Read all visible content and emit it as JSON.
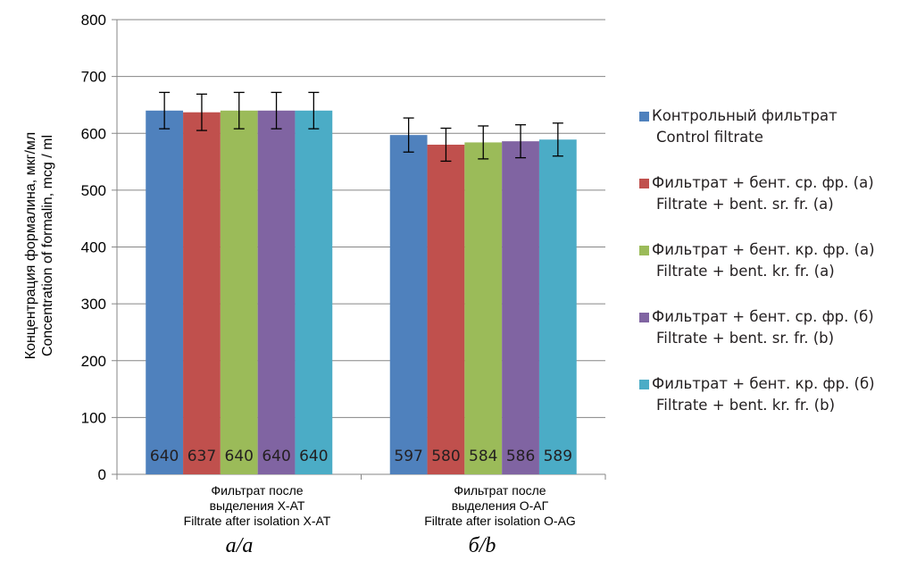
{
  "chart_data": {
    "type": "bar",
    "ylabel_lines": [
      "Концентрация формалина, мкг/мл",
      "Concentration of formalin, mcg / ml"
    ],
    "ylim": [
      0,
      800
    ],
    "yticks": [
      "0",
      "100",
      "200",
      "300",
      "400",
      "500",
      "600",
      "700",
      "800"
    ],
    "grid": true,
    "legend_position": "right",
    "categories": [
      {
        "lines": [
          "Фильтрат после",
          "выделения Х-АТ",
          "Filtrate after isolation X-AT"
        ],
        "panel": "а/a"
      },
      {
        "lines": [
          "Фильтрат после",
          "выделения О-АГ",
          "Filtrate after isolation O-AG"
        ],
        "panel": "б/b"
      }
    ],
    "series": [
      {
        "name": "Контрольный фильтрат",
        "name_en": "Control filtrate",
        "color": "#4f81bd",
        "values": [
          640,
          597
        ],
        "labels": [
          "640",
          "597"
        ],
        "errors": [
          32,
          30
        ]
      },
      {
        "name": "Фильтрат + бент. ср. фр. (а)",
        "name_en": "Filtrate + bent. sr. fr. (a)",
        "color": "#c0504d",
        "values": [
          637,
          580
        ],
        "labels": [
          "637",
          "580"
        ],
        "errors": [
          32,
          29
        ]
      },
      {
        "name": "Фильтрат + бент. кр. фр. (а)",
        "name_en": "Filtrate + bent. kr. fr. (a)",
        "color": "#9bbb59",
        "values": [
          640,
          584
        ],
        "labels": [
          "640",
          "584"
        ],
        "errors": [
          32,
          29
        ]
      },
      {
        "name": "Фильтрат + бент. ср. фр. (б)",
        "name_en": "Filtrate + bent. sr. fr. (b)",
        "color": "#8064a2",
        "values": [
          640,
          586
        ],
        "labels": [
          "640",
          "586"
        ],
        "errors": [
          32,
          29
        ]
      },
      {
        "name": "Фильтрат + бент. кр. фр. (б)",
        "name_en": "Filtrate + bent. kr. fr. (b)",
        "color": "#4bacc6",
        "values": [
          640,
          589
        ],
        "labels": [
          "640",
          "589"
        ],
        "errors": [
          32,
          29
        ]
      }
    ]
  }
}
